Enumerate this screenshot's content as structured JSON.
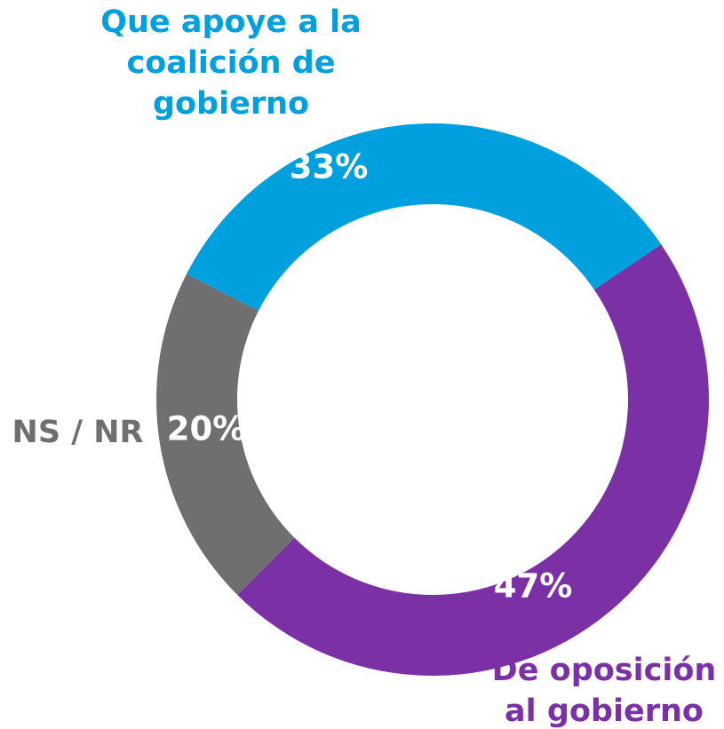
{
  "chart_data": {
    "type": "donut",
    "categories": [
      "Que apoye a la coalición de gobierno",
      "De oposición al gobierno",
      "NS / NR"
    ],
    "values": [
      33,
      47,
      20
    ],
    "value_labels": [
      "33%",
      "47%",
      "20%"
    ],
    "colors": [
      "#00a0de",
      "#7b31a5",
      "#6e6f6e"
    ]
  }
}
